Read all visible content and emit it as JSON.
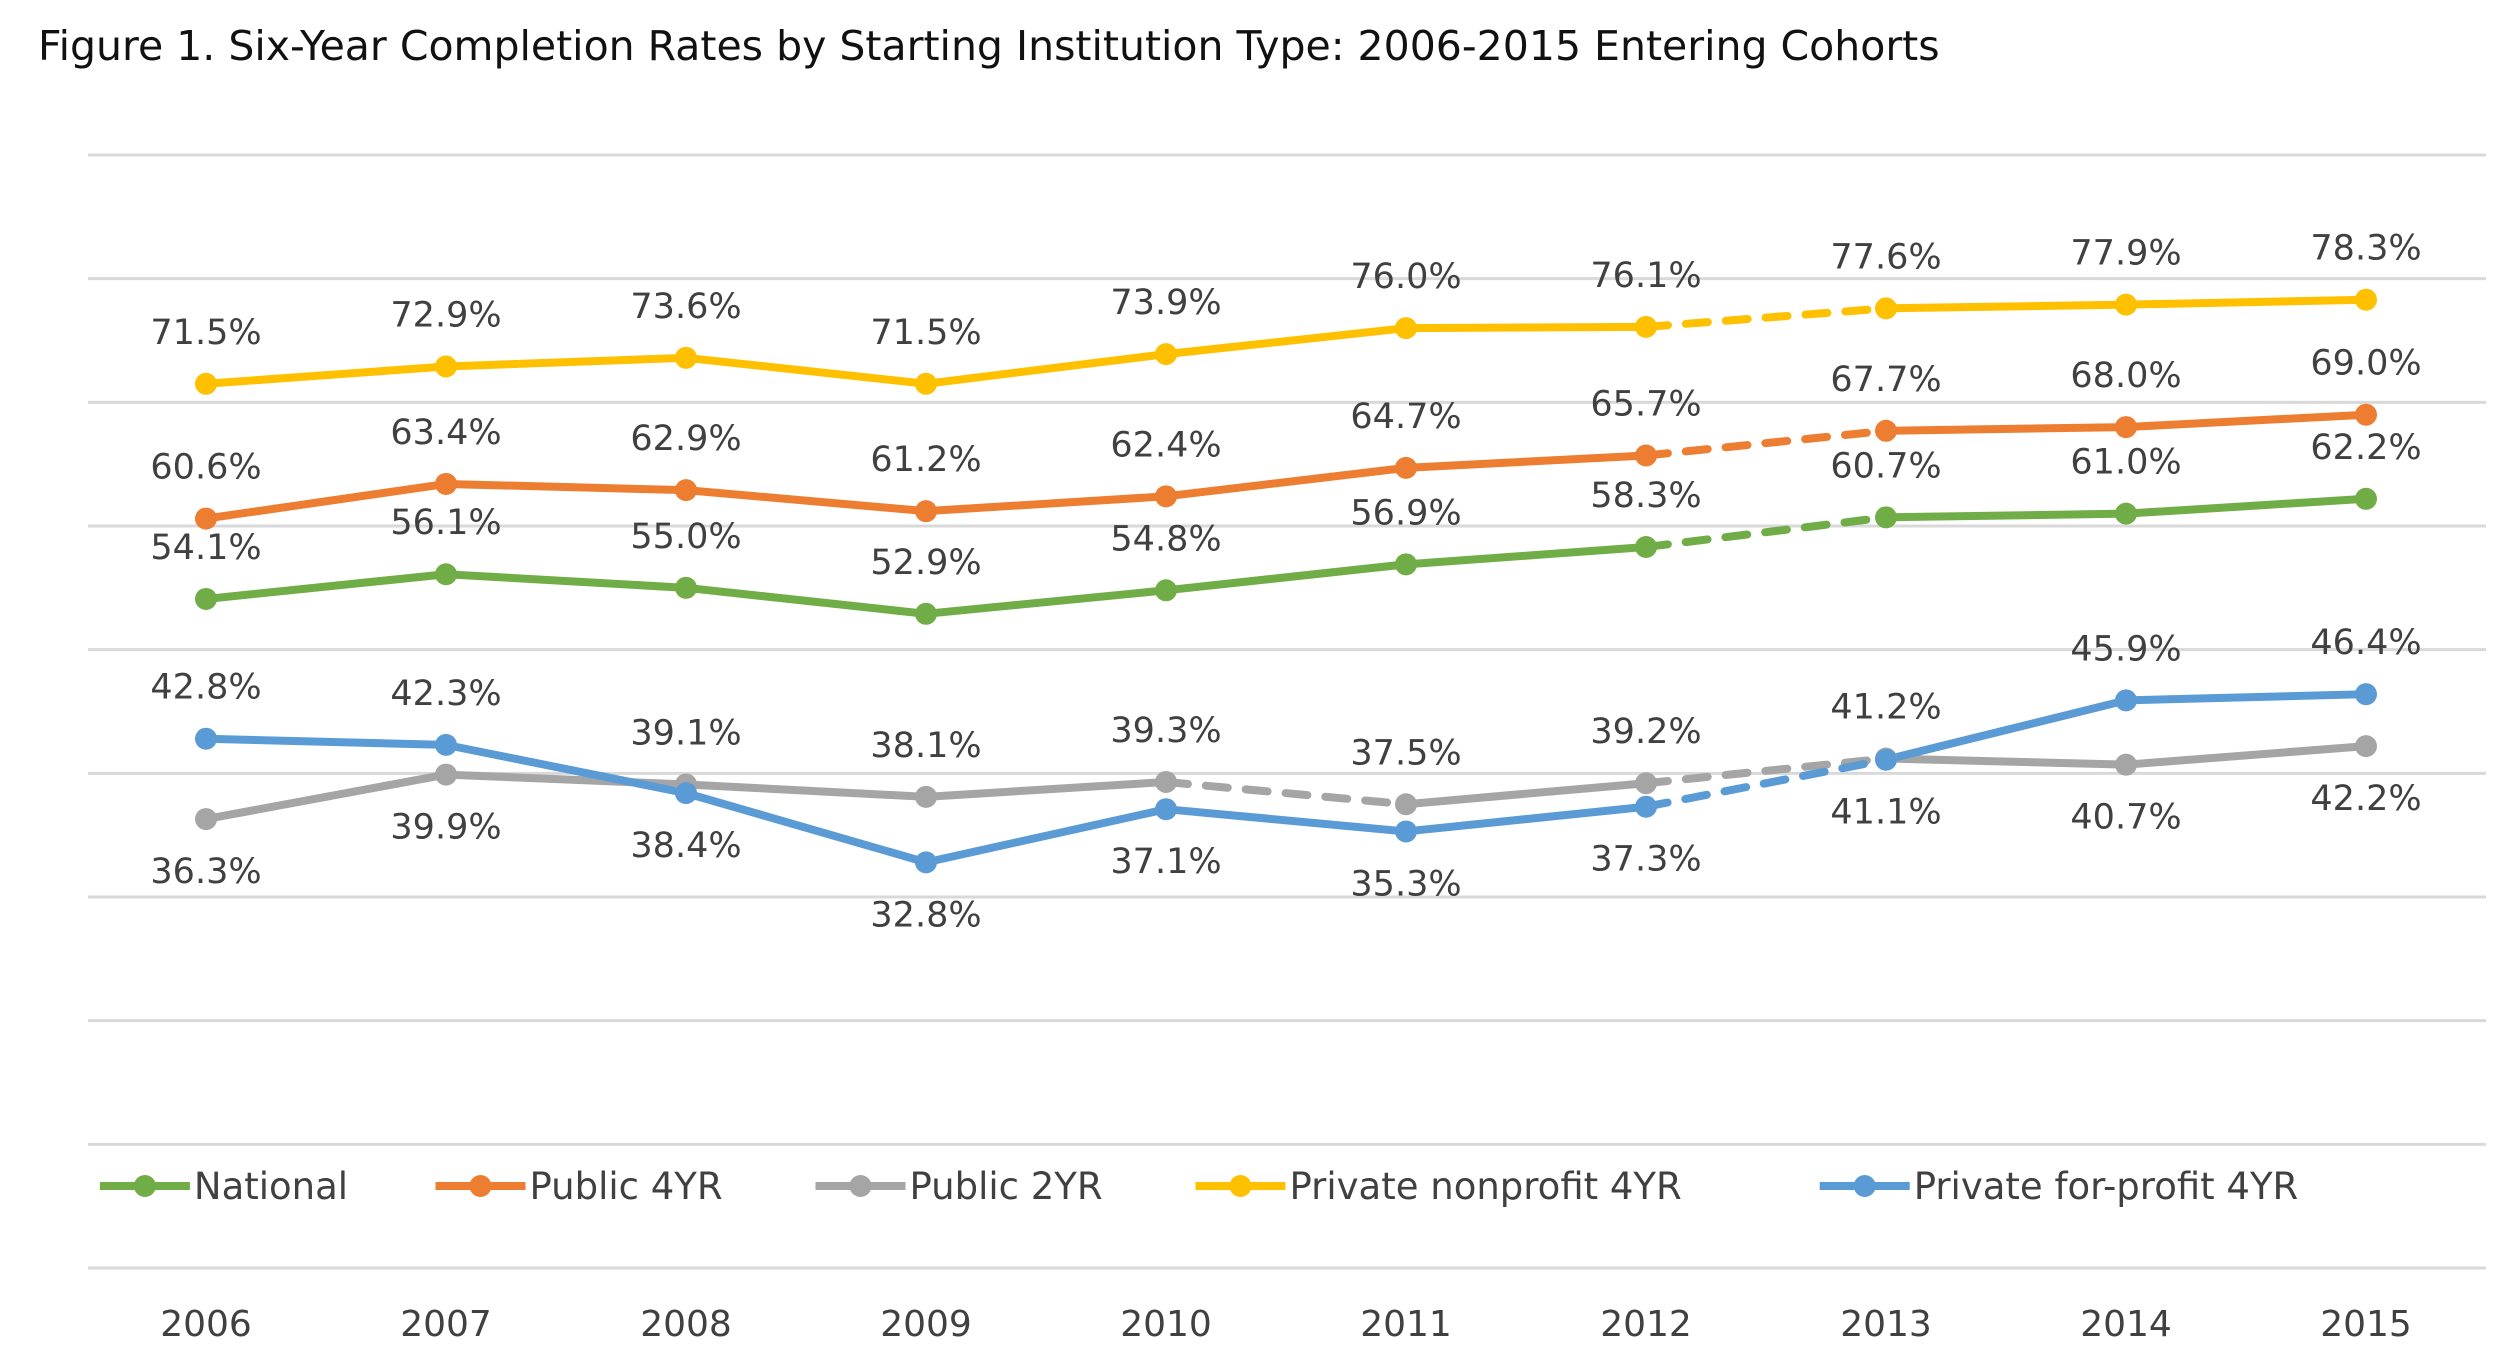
{
  "chart_data": {
    "type": "line",
    "title": "Figure 1. Six-Year Completion Rates by Starting Institution Type: 2006-2015 Entering Cohorts",
    "xlabel": "",
    "ylabel": "",
    "categories": [
      "2006",
      "2007",
      "2008",
      "2009",
      "2010",
      "2011",
      "2012",
      "2013",
      "2014",
      "2015"
    ],
    "ylim": [
      0,
      90
    ],
    "y_gridline_step": 10,
    "y_tick_labels_shown": false,
    "grid": true,
    "legend_position": "bottom-inside",
    "value_suffix": "%",
    "series": [
      {
        "name": "National",
        "color": "#70ad47",
        "values": [
          54.1,
          56.1,
          55.0,
          52.9,
          54.8,
          56.9,
          58.3,
          60.7,
          61.0,
          62.2
        ],
        "labels": [
          "54.1%",
          "56.1%",
          "55.0%",
          "52.9%",
          "54.8%",
          "56.9%",
          "58.3%",
          "60.7%",
          "61.0%",
          "62.2%"
        ],
        "label_side": "above",
        "dashed_segments": [
          [
            2012,
            2013
          ]
        ]
      },
      {
        "name": "Public 4YR",
        "color": "#ed7d31",
        "values": [
          60.6,
          63.4,
          62.9,
          61.2,
          62.4,
          64.7,
          65.7,
          67.7,
          68.0,
          69.0
        ],
        "labels": [
          "60.6%",
          "63.4%",
          "62.9%",
          "61.2%",
          "62.4%",
          "64.7%",
          "65.7%",
          "67.7%",
          "68.0%",
          "69.0%"
        ],
        "label_side": "above",
        "dashed_segments": [
          [
            2012,
            2013
          ]
        ]
      },
      {
        "name": "Public 2YR",
        "color": "#a5a5a5",
        "values": [
          36.3,
          39.9,
          39.1,
          38.1,
          39.3,
          37.5,
          39.2,
          41.2,
          40.7,
          42.2
        ],
        "labels": [
          "36.3%",
          "39.9%",
          "39.1%",
          "38.1%",
          "39.3%",
          "37.5%",
          "39.2%",
          "41.2%",
          "40.7%",
          "42.2%"
        ],
        "label_side": [
          "below",
          "below",
          "above",
          "above",
          "above",
          "above",
          "above",
          "above",
          "below",
          "below"
        ],
        "dashed_segments": [
          [
            2010,
            2011
          ],
          [
            2012,
            2013
          ]
        ]
      },
      {
        "name": "Private nonprofit 4YR",
        "color": "#ffc000",
        "values": [
          71.5,
          72.9,
          73.6,
          71.5,
          73.9,
          76.0,
          76.1,
          77.6,
          77.9,
          78.3
        ],
        "labels": [
          "71.5%",
          "72.9%",
          "73.6%",
          "71.5%",
          "73.9%",
          "76.0%",
          "76.1%",
          "77.6%",
          "77.9%",
          "78.3%"
        ],
        "label_side": "above",
        "dashed_segments": [
          [
            2012,
            2013
          ]
        ]
      },
      {
        "name": "Private for-profit 4YR",
        "color": "#5b9bd5",
        "values": [
          42.8,
          42.3,
          38.4,
          32.8,
          37.1,
          35.3,
          37.3,
          41.1,
          45.9,
          46.4
        ],
        "labels": [
          "42.8%",
          "42.3%",
          "38.4%",
          "32.8%",
          "37.1%",
          "35.3%",
          "37.3%",
          "41.1%",
          "45.9%",
          "46.4%"
        ],
        "label_side": [
          "above",
          "above",
          "below",
          "below",
          "below",
          "below",
          "below",
          "below",
          "above",
          "above"
        ],
        "dashed_segments": [
          [
            2012,
            2013
          ]
        ]
      }
    ]
  }
}
